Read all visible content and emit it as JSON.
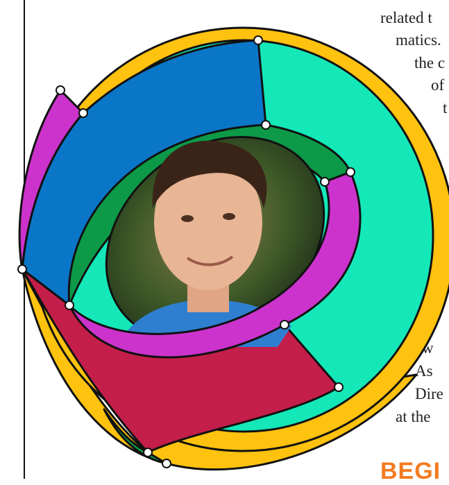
{
  "article": {
    "lines_top": [
      "related t",
      "matics.",
      "the c",
      "of",
      "t"
    ],
    "lines_bottom": [
      "w",
      "As",
      "Dire",
      "at the"
    ],
    "heading": "BEGI"
  }
}
